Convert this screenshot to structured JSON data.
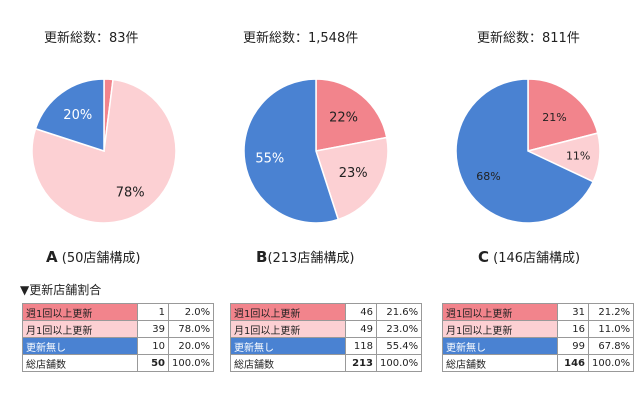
{
  "colors": {
    "weekly": "#f2848c",
    "monthly": "#fcd0d3",
    "none": "#4a82d2"
  },
  "chart_data": [
    {
      "type": "pie",
      "title": "更新総数：83件",
      "letter": "A",
      "caption": "(50店舗構成)",
      "categories": [
        "週1回以上更新",
        "月1回以上更新",
        "更新無し"
      ],
      "values": [
        2,
        78,
        20
      ],
      "labels": [
        "2%",
        "78%",
        "20%"
      ]
    },
    {
      "type": "pie",
      "title": "更新総数：1,548件",
      "letter": "B",
      "caption": "(213店舗構成)",
      "categories": [
        "週1回以上更新",
        "月1回以上更新",
        "更新無し"
      ],
      "values": [
        22,
        23,
        55
      ],
      "labels": [
        "22%",
        "23%",
        "55%"
      ]
    },
    {
      "type": "pie",
      "title": "更新総数：811件",
      "letter": "C",
      "caption": " (146店舗構成)",
      "categories": [
        "週1回以上更新",
        "月1回以上更新",
        "更新無し"
      ],
      "values": [
        21,
        11,
        68
      ],
      "labels": [
        "21%",
        "11%",
        "68%"
      ]
    }
  ],
  "section_heading": "▼更新店舗割合",
  "tables": [
    {
      "rows": [
        {
          "label": "週1回以上更新",
          "count": "1",
          "pct": "2.0%"
        },
        {
          "label": "月1回以上更新",
          "count": "39",
          "pct": "78.0%"
        },
        {
          "label": "更新無し",
          "count": "10",
          "pct": "20.0%"
        },
        {
          "label": "総店舗数",
          "count": "50",
          "pct": "100.0%"
        }
      ]
    },
    {
      "rows": [
        {
          "label": "週1回以上更新",
          "count": "46",
          "pct": "21.6%"
        },
        {
          "label": "月1回以上更新",
          "count": "49",
          "pct": "23.0%"
        },
        {
          "label": "更新無し",
          "count": "118",
          "pct": "55.4%"
        },
        {
          "label": "総店舗数",
          "count": "213",
          "pct": "100.0%"
        }
      ]
    },
    {
      "rows": [
        {
          "label": "週1回以上更新",
          "count": "31",
          "pct": "21.2%"
        },
        {
          "label": "月1回以上更新",
          "count": "16",
          "pct": "11.0%"
        },
        {
          "label": "更新無し",
          "count": "99",
          "pct": "67.8%"
        },
        {
          "label": "総店舗数",
          "count": "146",
          "pct": "100.0%"
        }
      ]
    }
  ]
}
